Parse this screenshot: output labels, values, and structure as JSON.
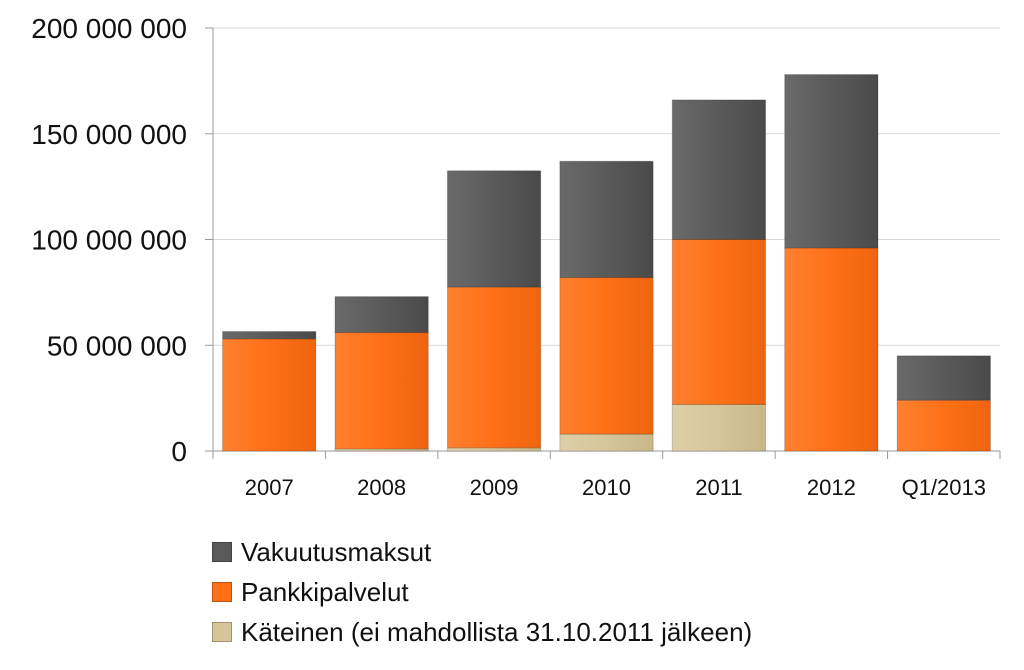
{
  "chart_data": {
    "type": "bar",
    "stacked": true,
    "categories": [
      "2007",
      "2008",
      "2009",
      "2010",
      "2011",
      "2012",
      "Q1/2013"
    ],
    "series": [
      {
        "name": "Käteinen (ei mahdollista 31.10.2011 jälkeen)",
        "color": "#D6C59A",
        "values": [
          0,
          1000000,
          1500000,
          8000000,
          22000000,
          0,
          0
        ]
      },
      {
        "name": "Pankkipalvelut",
        "color": "#FF7016",
        "values": [
          53000000,
          55000000,
          76000000,
          74000000,
          78000000,
          96000000,
          24000000
        ]
      },
      {
        "name": "Vakuutusmaksut",
        "color": "#5A5A5A",
        "values": [
          3500000,
          17000000,
          55000000,
          55000000,
          66000000,
          82000000,
          21000000
        ]
      }
    ],
    "legend_order": [
      2,
      1,
      0
    ],
    "y_ticks": [
      {
        "value": 0,
        "label": "0"
      },
      {
        "value": 50000000,
        "label": "50 000 000"
      },
      {
        "value": 100000000,
        "label": "100 000 000"
      },
      {
        "value": 150000000,
        "label": "150 000 000"
      },
      {
        "value": 200000000,
        "label": "200 000 000"
      }
    ],
    "ylim": [
      0,
      200000000
    ],
    "grid": true,
    "legend_position": "bottom-left",
    "title": "",
    "xlabel": "",
    "ylabel": ""
  }
}
